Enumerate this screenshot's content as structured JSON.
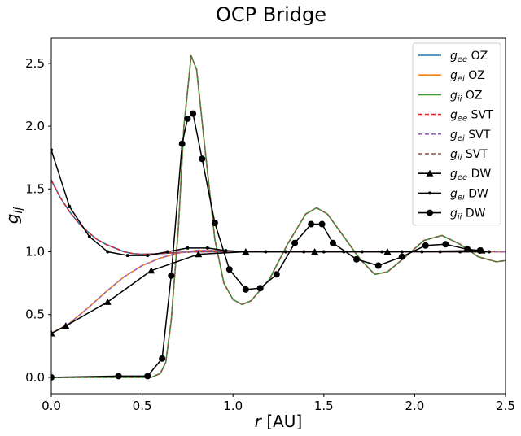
{
  "chart_data": {
    "type": "line",
    "title": "OCP Bridge",
    "xlabel": "r [AU]",
    "ylabel": "g_ij",
    "xlim": [
      0,
      2.5
    ],
    "ylim": [
      -0.13,
      2.7
    ],
    "xticks": [
      0.0,
      0.5,
      1.0,
      1.5,
      2.0,
      2.5
    ],
    "yticks": [
      0.0,
      0.5,
      1.0,
      1.5,
      2.0,
      2.5
    ],
    "xtick_labels": [
      "0.0",
      "0.5",
      "1.0",
      "1.5",
      "2.0",
      "2.5"
    ],
    "ytick_labels": [
      "0.0",
      "0.5",
      "1.0",
      "1.5",
      "2.0",
      "2.5"
    ],
    "grid": false,
    "legend_position": "top-right",
    "colors": {
      "gee_oz": "#1f77b4",
      "gei_oz": "#ff7f0e",
      "gii_oz": "#2ca02c",
      "gee_svt": "#d62728",
      "gei_svt": "#9467bd",
      "gii_svt": "#8c564b",
      "dw": "#000000"
    },
    "series": [
      {
        "key": "gee_oz",
        "name": "g_ee OZ",
        "sub": "ee",
        "suffix": " OZ",
        "style": "solid",
        "x": [
          0,
          0.05,
          0.1,
          0.15,
          0.2,
          0.25,
          0.3,
          0.35,
          0.4,
          0.45,
          0.5,
          0.6,
          0.7,
          0.8,
          1.0,
          1.2,
          1.5,
          2.0,
          2.5
        ],
        "y": [
          1.57,
          1.43,
          1.32,
          1.23,
          1.16,
          1.1,
          1.06,
          1.03,
          1.0,
          0.985,
          0.98,
          0.985,
          0.995,
          1.0,
          1.0,
          1.0,
          1.0,
          1.0,
          1.0
        ]
      },
      {
        "key": "gei_oz",
        "name": "g_ei OZ",
        "sub": "ei",
        "suffix": " OZ",
        "style": "solid",
        "x": [
          0,
          0.1,
          0.2,
          0.3,
          0.4,
          0.5,
          0.6,
          0.7,
          0.8,
          0.9,
          1.0,
          1.2,
          1.5,
          2.0,
          2.5
        ],
        "y": [
          0.35,
          0.43,
          0.55,
          0.68,
          0.8,
          0.89,
          0.95,
          0.99,
          1.01,
          1.01,
          1.005,
          1.0,
          1.0,
          1.0,
          1.0
        ]
      },
      {
        "key": "gii_oz",
        "name": "g_ii OZ",
        "sub": "ii",
        "suffix": " OZ",
        "style": "solid",
        "x": [
          0,
          0.55,
          0.6,
          0.63,
          0.66,
          0.7,
          0.73,
          0.77,
          0.8,
          0.84,
          0.9,
          0.95,
          1.0,
          1.05,
          1.1,
          1.2,
          1.3,
          1.4,
          1.46,
          1.52,
          1.6,
          1.7,
          1.78,
          1.85,
          1.95,
          2.05,
          2.15,
          2.25,
          2.35,
          2.45,
          2.5
        ],
        "y": [
          0.0,
          0.0,
          0.03,
          0.12,
          0.45,
          1.2,
          2.0,
          2.56,
          2.45,
          1.9,
          1.1,
          0.75,
          0.62,
          0.58,
          0.61,
          0.78,
          1.06,
          1.3,
          1.35,
          1.3,
          1.14,
          0.94,
          0.82,
          0.84,
          0.96,
          1.09,
          1.13,
          1.06,
          0.96,
          0.92,
          0.93
        ]
      },
      {
        "key": "gee_svt",
        "name": "g_ee SVT",
        "sub": "ee",
        "suffix": " SVT",
        "style": "dashed",
        "x": [
          0,
          0.05,
          0.1,
          0.15,
          0.2,
          0.25,
          0.3,
          0.35,
          0.4,
          0.45,
          0.5,
          0.6,
          0.7,
          0.8,
          1.0,
          1.2,
          1.5,
          2.0,
          2.5
        ],
        "y": [
          1.57,
          1.43,
          1.32,
          1.23,
          1.16,
          1.1,
          1.06,
          1.03,
          1.0,
          0.985,
          0.98,
          0.985,
          0.995,
          1.0,
          1.0,
          1.0,
          1.0,
          1.0,
          1.0
        ]
      },
      {
        "key": "gei_svt",
        "name": "g_ei SVT",
        "sub": "ei",
        "suffix": " SVT",
        "style": "dashed",
        "x": [
          0,
          0.1,
          0.2,
          0.3,
          0.4,
          0.5,
          0.6,
          0.7,
          0.8,
          0.9,
          1.0,
          1.2,
          1.5,
          2.0,
          2.5
        ],
        "y": [
          0.35,
          0.43,
          0.55,
          0.68,
          0.8,
          0.89,
          0.95,
          0.99,
          1.01,
          1.01,
          1.005,
          1.0,
          1.0,
          1.0,
          1.0
        ]
      },
      {
        "key": "gii_svt",
        "name": "g_ii SVT",
        "sub": "ii",
        "suffix": " SVT",
        "style": "dashed",
        "x": [
          0,
          0.55,
          0.6,
          0.63,
          0.66,
          0.7,
          0.73,
          0.77,
          0.8,
          0.84,
          0.9,
          0.95,
          1.0,
          1.05,
          1.1,
          1.2,
          1.3,
          1.4,
          1.46,
          1.52,
          1.6,
          1.7,
          1.78,
          1.85,
          1.95,
          2.05,
          2.15,
          2.25,
          2.35,
          2.45,
          2.5
        ],
        "y": [
          0.0,
          0.0,
          0.03,
          0.12,
          0.45,
          1.2,
          2.0,
          2.56,
          2.45,
          1.9,
          1.1,
          0.75,
          0.62,
          0.58,
          0.61,
          0.78,
          1.06,
          1.3,
          1.35,
          1.3,
          1.14,
          0.94,
          0.82,
          0.84,
          0.96,
          1.09,
          1.13,
          1.06,
          0.96,
          0.92,
          0.93
        ]
      },
      {
        "key": "gee_dw",
        "name": "g_ee DW",
        "sub": "ee",
        "suffix": " DW",
        "style": "solid",
        "marker": "triangle",
        "x": [
          0,
          0.08,
          0.31,
          0.55,
          0.81,
          1.07,
          1.45,
          1.85,
          2.37
        ],
        "y": [
          0.35,
          0.41,
          0.6,
          0.85,
          0.98,
          1.0,
          1.0,
          1.0,
          1.01
        ]
      },
      {
        "key": "gei_dw",
        "name": "g_ei DW",
        "sub": "ei",
        "suffix": " DW",
        "style": "solid",
        "marker": "dot",
        "x": [
          0,
          0.1,
          0.21,
          0.31,
          0.42,
          0.53,
          0.64,
          0.75,
          0.86,
          0.96,
          1.07,
          1.18,
          1.29,
          1.39,
          1.5,
          1.61,
          1.71,
          1.82,
          1.93,
          2.04,
          2.14,
          2.25,
          2.36,
          2.41
        ],
        "y": [
          1.81,
          1.36,
          1.12,
          1.0,
          0.97,
          0.97,
          1.0,
          1.03,
          1.03,
          1.01,
          1.0,
          1.0,
          1.0,
          1.0,
          1.0,
          1.0,
          1.0,
          1.0,
          1.0,
          1.0,
          1.0,
          1.0,
          1.0,
          1.0
        ]
      },
      {
        "key": "gii_dw",
        "name": "g_ii DW",
        "sub": "ii",
        "suffix": " DW",
        "style": "solid",
        "marker": "circle",
        "x": [
          0,
          0.37,
          0.53,
          0.61,
          0.66,
          0.72,
          0.75,
          0.78,
          0.83,
          0.9,
          0.98,
          1.07,
          1.15,
          1.24,
          1.34,
          1.43,
          1.49,
          1.55,
          1.68,
          1.8,
          1.93,
          2.06,
          2.17,
          2.29,
          2.36
        ],
        "y": [
          0.0,
          0.01,
          0.01,
          0.15,
          0.81,
          1.86,
          2.06,
          2.1,
          1.74,
          1.23,
          0.86,
          0.7,
          0.71,
          0.82,
          1.07,
          1.22,
          1.22,
          1.07,
          0.94,
          0.89,
          0.96,
          1.05,
          1.06,
          1.02,
          1.01
        ]
      }
    ]
  }
}
